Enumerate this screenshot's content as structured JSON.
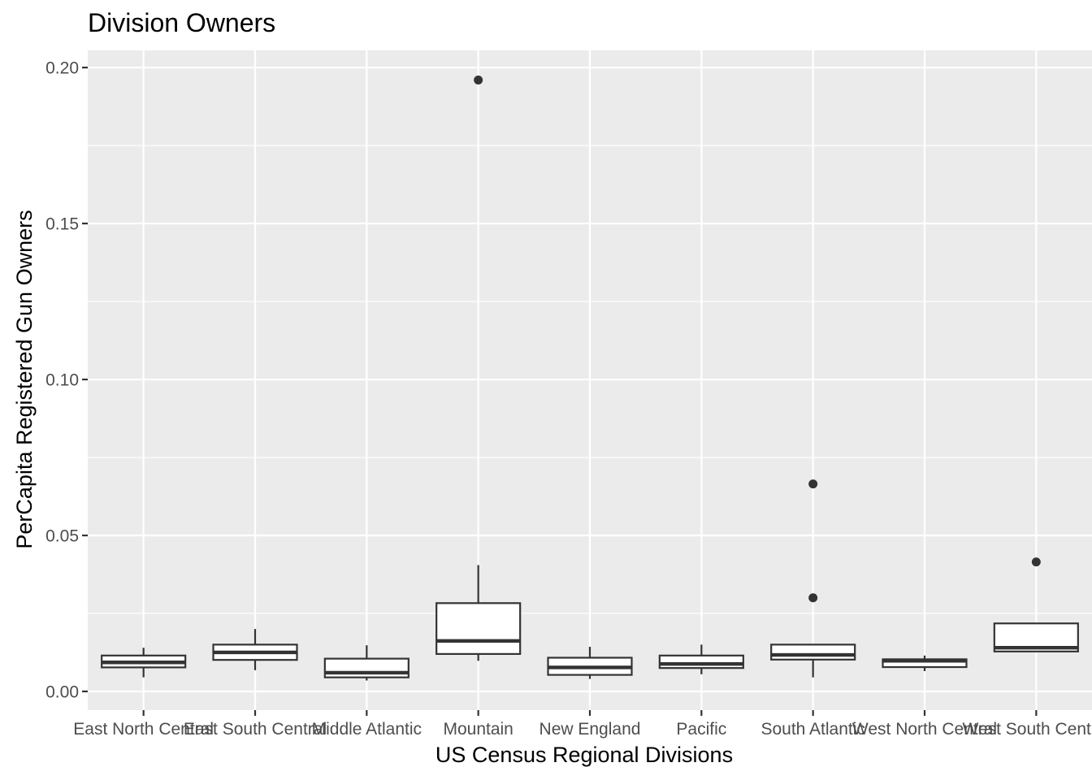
{
  "chart_data": {
    "type": "boxplot",
    "title": "Division Owners",
    "xlabel": "US Census Regional Divisions",
    "ylabel": "PerCapita Registered Gun Owners",
    "ylim": [
      -0.006,
      0.2055
    ],
    "yticks": [
      0.0,
      0.05,
      0.1,
      0.15,
      0.2
    ],
    "ytick_labels": [
      "0.00",
      "0.05",
      "0.10",
      "0.15",
      "0.20"
    ],
    "grid": true,
    "categories": [
      "East North Central",
      "East South Central",
      "Middle Atlantic",
      "Mountain",
      "New England",
      "Pacific",
      "South Atlantic",
      "West North Central",
      "West South Central"
    ],
    "boxes": [
      {
        "category": "East North Central",
        "lower_whisker": 0.0045,
        "q1": 0.0077,
        "median": 0.0093,
        "q3": 0.0115,
        "upper_whisker": 0.014,
        "outliers": []
      },
      {
        "category": "East South Central",
        "lower_whisker": 0.0068,
        "q1": 0.0101,
        "median": 0.0125,
        "q3": 0.015,
        "upper_whisker": 0.02,
        "outliers": []
      },
      {
        "category": "Middle Atlantic",
        "lower_whisker": 0.0035,
        "q1": 0.0045,
        "median": 0.006,
        "q3": 0.0105,
        "upper_whisker": 0.0148,
        "outliers": []
      },
      {
        "category": "Mountain",
        "lower_whisker": 0.0098,
        "q1": 0.012,
        "median": 0.0162,
        "q3": 0.0283,
        "upper_whisker": 0.0405,
        "outliers": [
          0.196
        ]
      },
      {
        "category": "New England",
        "lower_whisker": 0.004,
        "q1": 0.0053,
        "median": 0.0077,
        "q3": 0.0108,
        "upper_whisker": 0.0143,
        "outliers": []
      },
      {
        "category": "Pacific",
        "lower_whisker": 0.0055,
        "q1": 0.0075,
        "median": 0.0088,
        "q3": 0.0115,
        "upper_whisker": 0.015,
        "outliers": []
      },
      {
        "category": "South Atlantic",
        "lower_whisker": 0.0045,
        "q1": 0.0102,
        "median": 0.0117,
        "q3": 0.015,
        "upper_whisker": 0.015,
        "outliers": [
          0.03,
          0.0665
        ]
      },
      {
        "category": "West North Central",
        "lower_whisker": 0.0065,
        "q1": 0.0078,
        "median": 0.0098,
        "q3": 0.0103,
        "upper_whisker": 0.0115,
        "outliers": []
      },
      {
        "category": "West South Central",
        "lower_whisker": 0.0128,
        "q1": 0.0128,
        "median": 0.014,
        "q3": 0.0218,
        "upper_whisker": 0.0218,
        "outliers": [
          0.0415
        ]
      }
    ]
  }
}
